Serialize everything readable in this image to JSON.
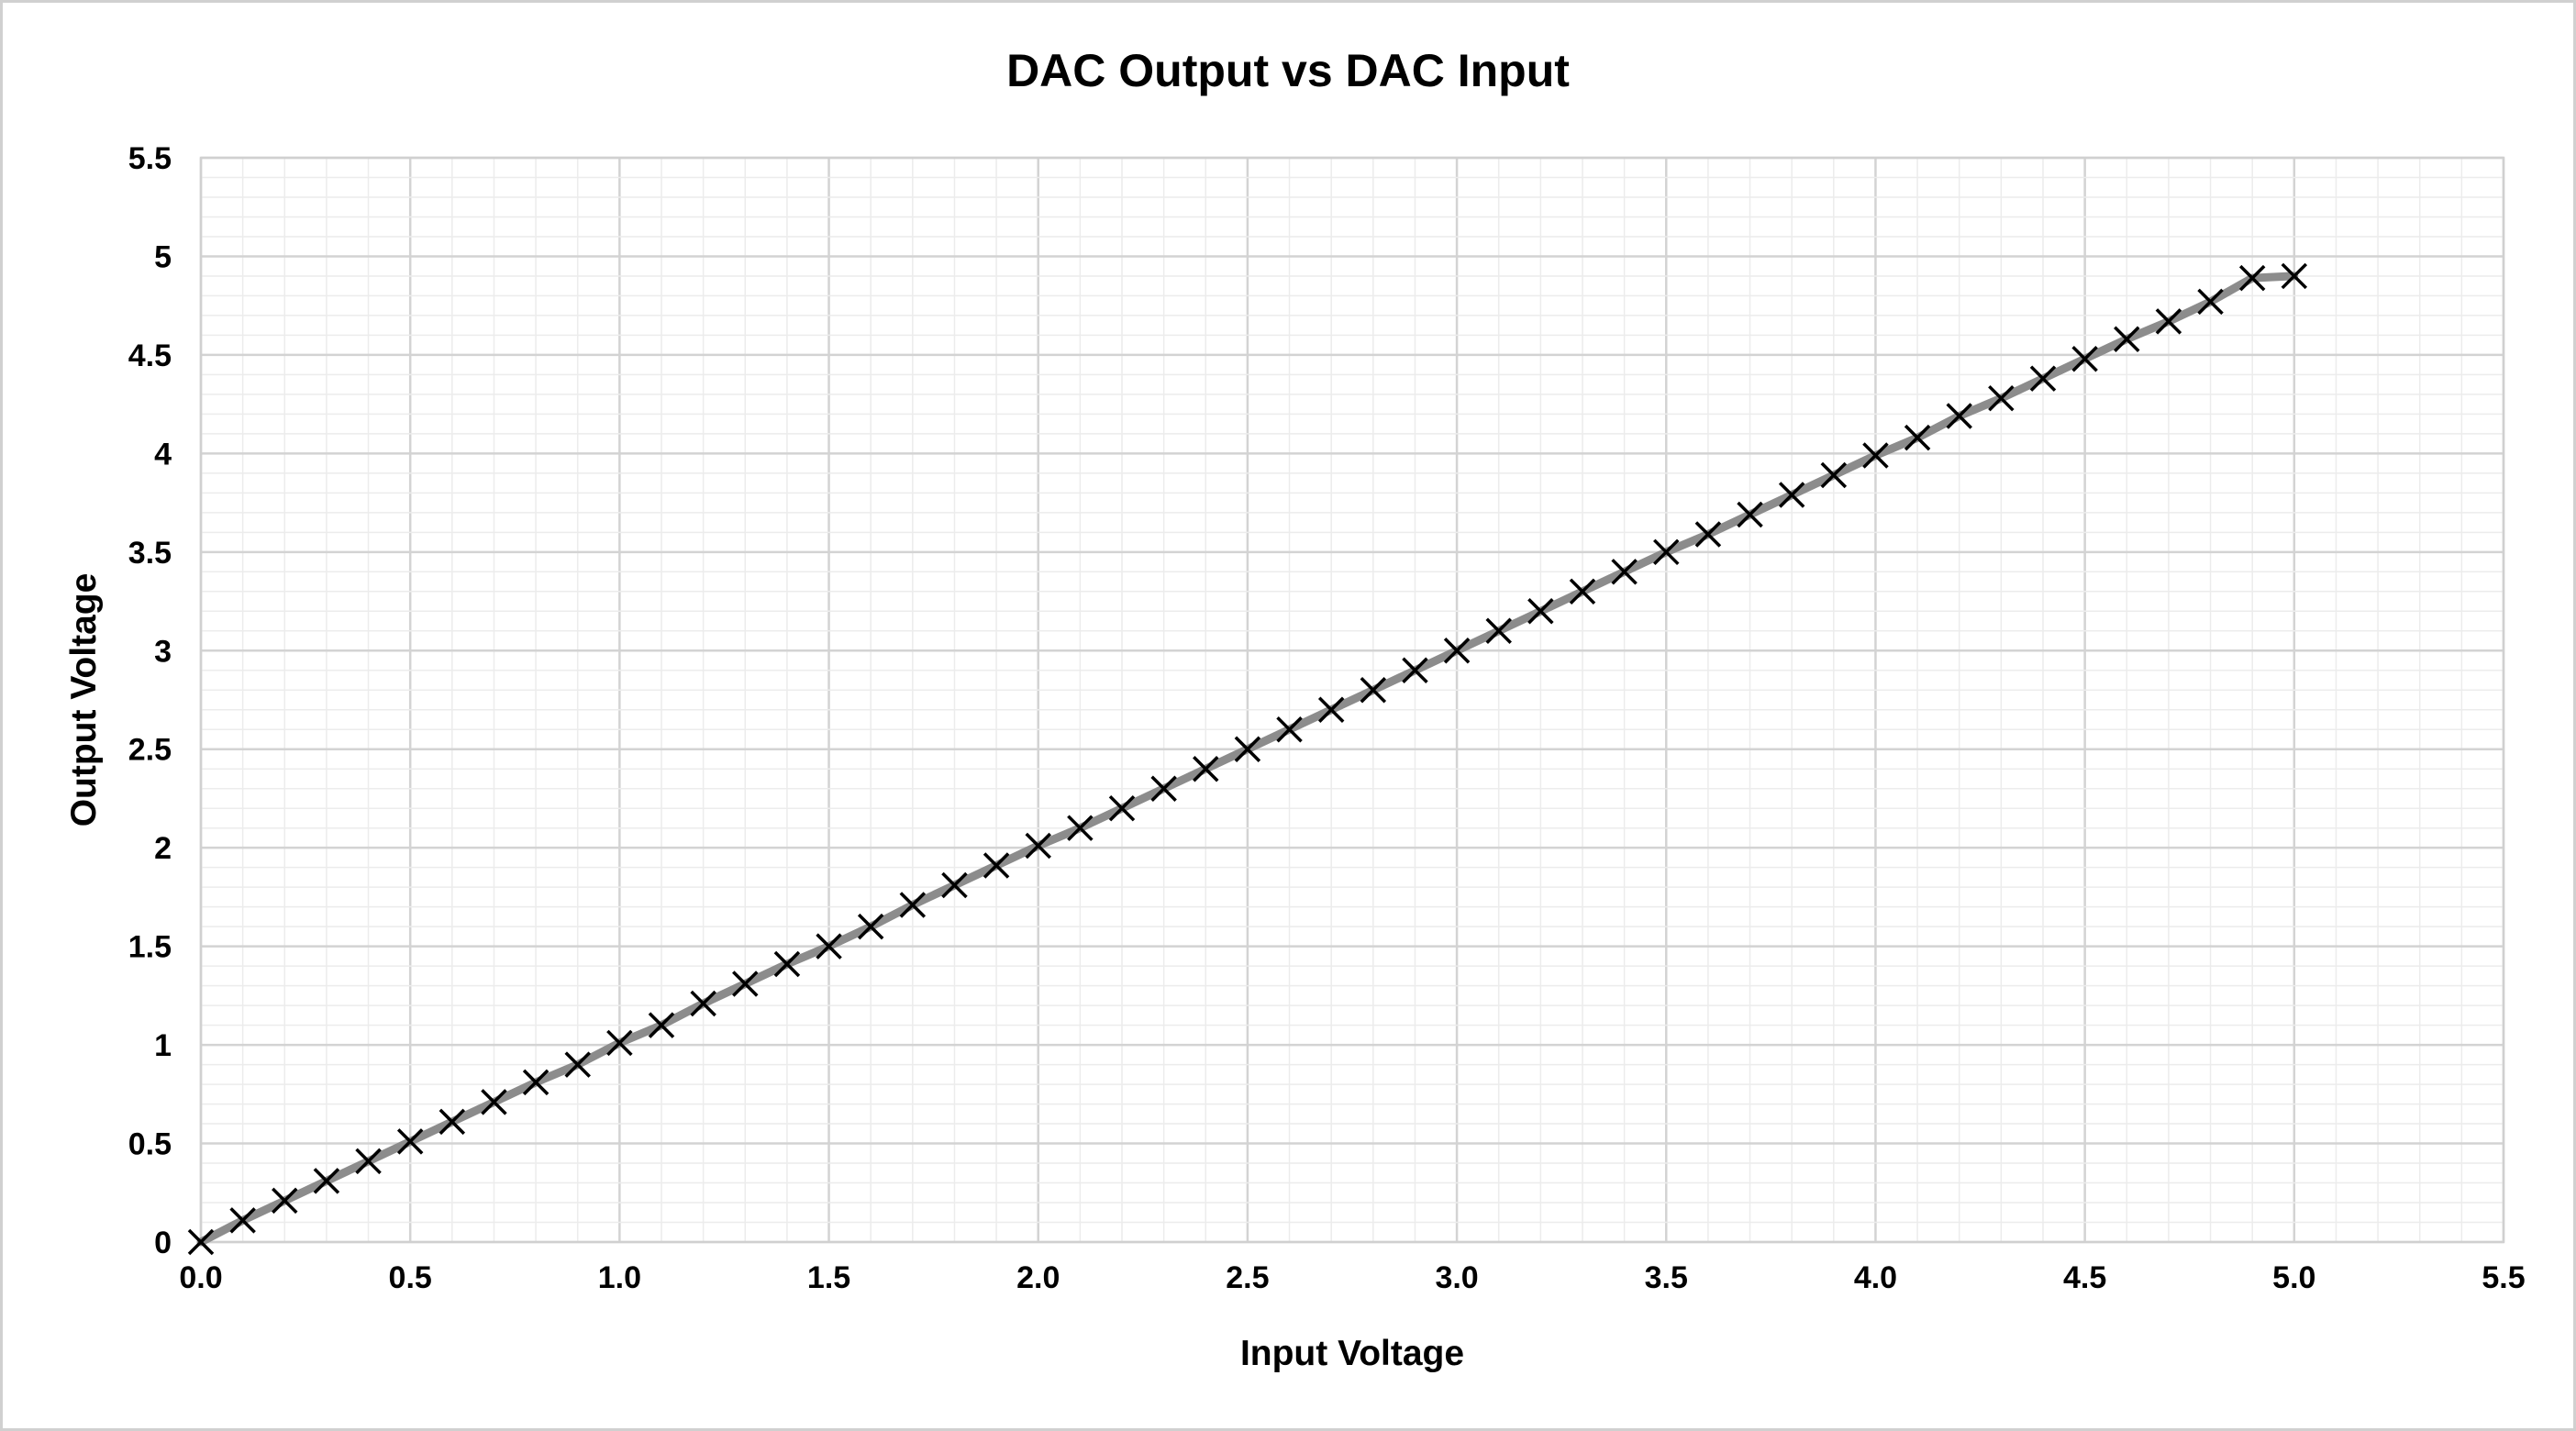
{
  "chart_data": {
    "type": "scatter",
    "title": "DAC Output vs DAC Input",
    "xlabel": "Input Voltage",
    "ylabel": "Output Voltage",
    "xlim": [
      0,
      5.5
    ],
    "ylim": [
      0,
      5.5
    ],
    "xticks": [
      "0.0",
      "0.5",
      "1.0",
      "1.5",
      "2.0",
      "2.5",
      "3.0",
      "3.5",
      "4.0",
      "4.5",
      "5.0",
      "5.5"
    ],
    "yticks": [
      "0",
      "0.5",
      "1",
      "1.5",
      "2",
      "2.5",
      "3",
      "3.5",
      "4",
      "4.5",
      "5",
      "5.5"
    ],
    "grid": "major and minor",
    "legend": "none",
    "marker": "x",
    "line_color": "#8c8c8c",
    "marker_color": "#000000",
    "series": [
      {
        "x": [
          0.0,
          0.1,
          0.2,
          0.3,
          0.4,
          0.5,
          0.6,
          0.7,
          0.8,
          0.9,
          1.0,
          1.1,
          1.2,
          1.3,
          1.4,
          1.5,
          1.6,
          1.7,
          1.8,
          1.9,
          2.0,
          2.1,
          2.2,
          2.3,
          2.4,
          2.5,
          2.6,
          2.7,
          2.8,
          2.9,
          3.0,
          3.1,
          3.2,
          3.3,
          3.4,
          3.5,
          3.6,
          3.7,
          3.8,
          3.9,
          4.0,
          4.1,
          4.2,
          4.3,
          4.4,
          4.5,
          4.6,
          4.7,
          4.8,
          4.9,
          5.0
        ],
        "y": [
          0.0,
          0.11,
          0.21,
          0.31,
          0.41,
          0.51,
          0.61,
          0.71,
          0.81,
          0.9,
          1.01,
          1.1,
          1.21,
          1.31,
          1.41,
          1.5,
          1.6,
          1.71,
          1.81,
          1.91,
          2.01,
          2.1,
          2.2,
          2.3,
          2.4,
          2.5,
          2.6,
          2.7,
          2.8,
          2.9,
          3.0,
          3.1,
          3.2,
          3.3,
          3.4,
          3.5,
          3.59,
          3.69,
          3.79,
          3.89,
          3.99,
          4.08,
          4.19,
          4.28,
          4.38,
          4.48,
          4.58,
          4.67,
          4.77,
          4.89,
          4.9
        ]
      }
    ]
  }
}
